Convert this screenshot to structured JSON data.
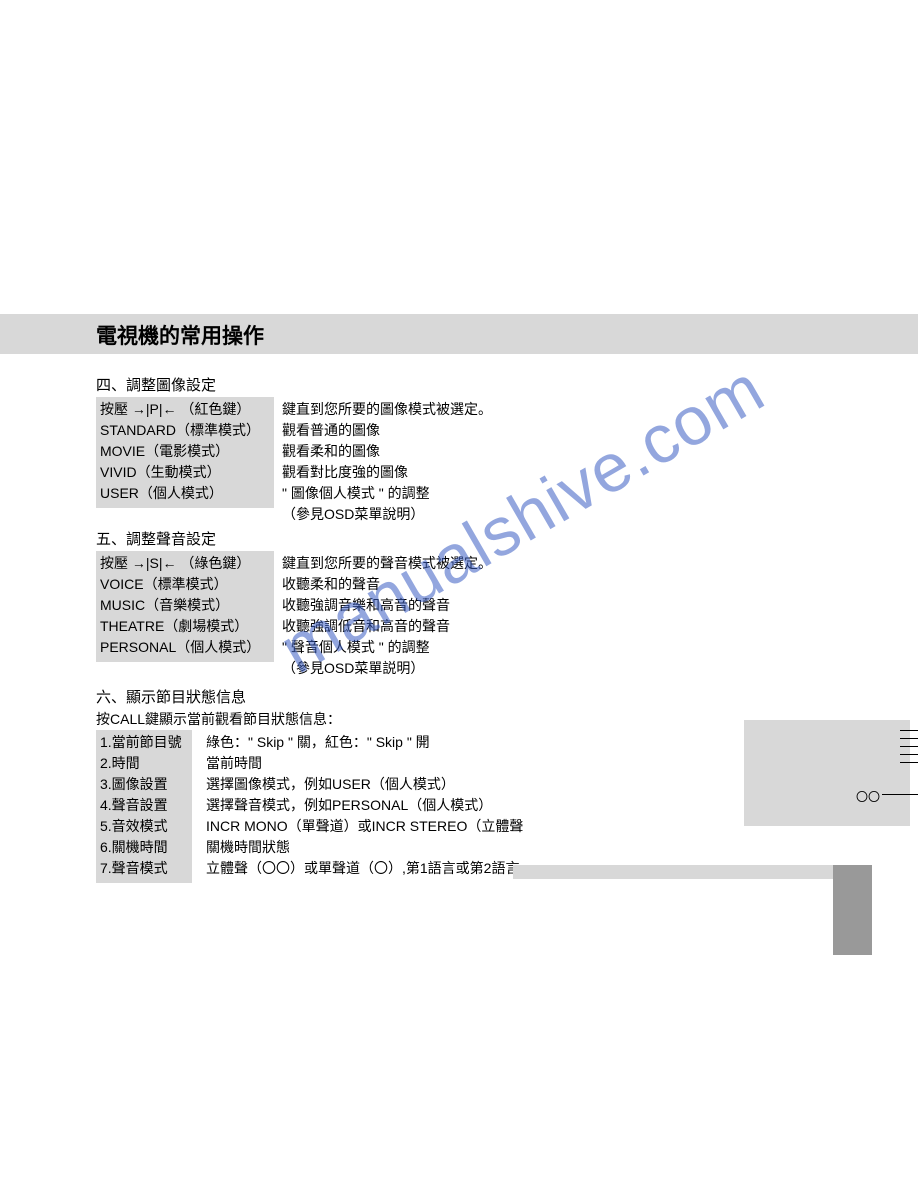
{
  "colors": {
    "bg_gray": "#d8d8d8",
    "side_gray": "#999999",
    "watermark": "#3b5fc4",
    "text": "#000000",
    "page_bg": "#ffffff"
  },
  "typography": {
    "body_fontsize": 14,
    "title_fontsize": 21,
    "section_fontsize": 15,
    "watermark_fontsize": 68
  },
  "watermark_text": "manualshive.com",
  "header": {
    "title": "電視機的常用操作"
  },
  "section4": {
    "title": "四、調整圖像設定",
    "left": [
      "按壓 →|P|← （紅色鍵）",
      "STANDARD（標準模式）",
      "MOVIE（電影模式）",
      "VIVID（生動模式）",
      "USER（個人模式）"
    ],
    "right": [
      "鍵直到您所要的圖像模式被選定。",
      "觀看普通的圖像",
      "觀看柔和的圖像",
      "觀看對比度強的圖像",
      "\" 圖像個人模式 \" 的調整",
      "（參見OSD菜單說明）"
    ]
  },
  "section5": {
    "title": "五、調整聲音設定",
    "left": [
      "按壓 →|S|← （綠色鍵）",
      "VOICE（標準模式）",
      "MUSIC（音樂模式）",
      "THEATRE（劇場模式）",
      "PERSONAL（個人模式）"
    ],
    "right": [
      "鍵直到您所要的聲音模式被選定。",
      "收聽柔和的聲音",
      "收聽強調音樂和高音的聲音",
      "收聽強調低音和高音的聲音",
      "\" 聲音個人模式 \" 的調整",
      "（參見OSD菜單説明）"
    ]
  },
  "section6": {
    "title": "六、顯示節目狀態信息",
    "intro": "按CALL鍵顯示當前觀看節目狀態信息：",
    "left": [
      "1.當前節目號",
      "2.時間",
      "3.圖像設置",
      "4.聲音設置",
      "5.音效模式",
      "6.關機時間",
      "7.聲音模式"
    ],
    "right": [
      "綠色：\" Skip \" 關，紅色：\" Skip \" 開",
      "當前時間",
      "選擇圖像模式，例如USER（個人模式）",
      "選擇聲音模式，例如PERSONAL（個人模式）",
      "INCR MONO（單聲道）或INCR STEREO（立體聲",
      "關機時間狀態",
      "立體聲（〇〇）或單聲道（〇）,第1語言或第2語言"
    ]
  },
  "tv_box": {
    "circles_text": "〇〇",
    "line_count": 5
  }
}
